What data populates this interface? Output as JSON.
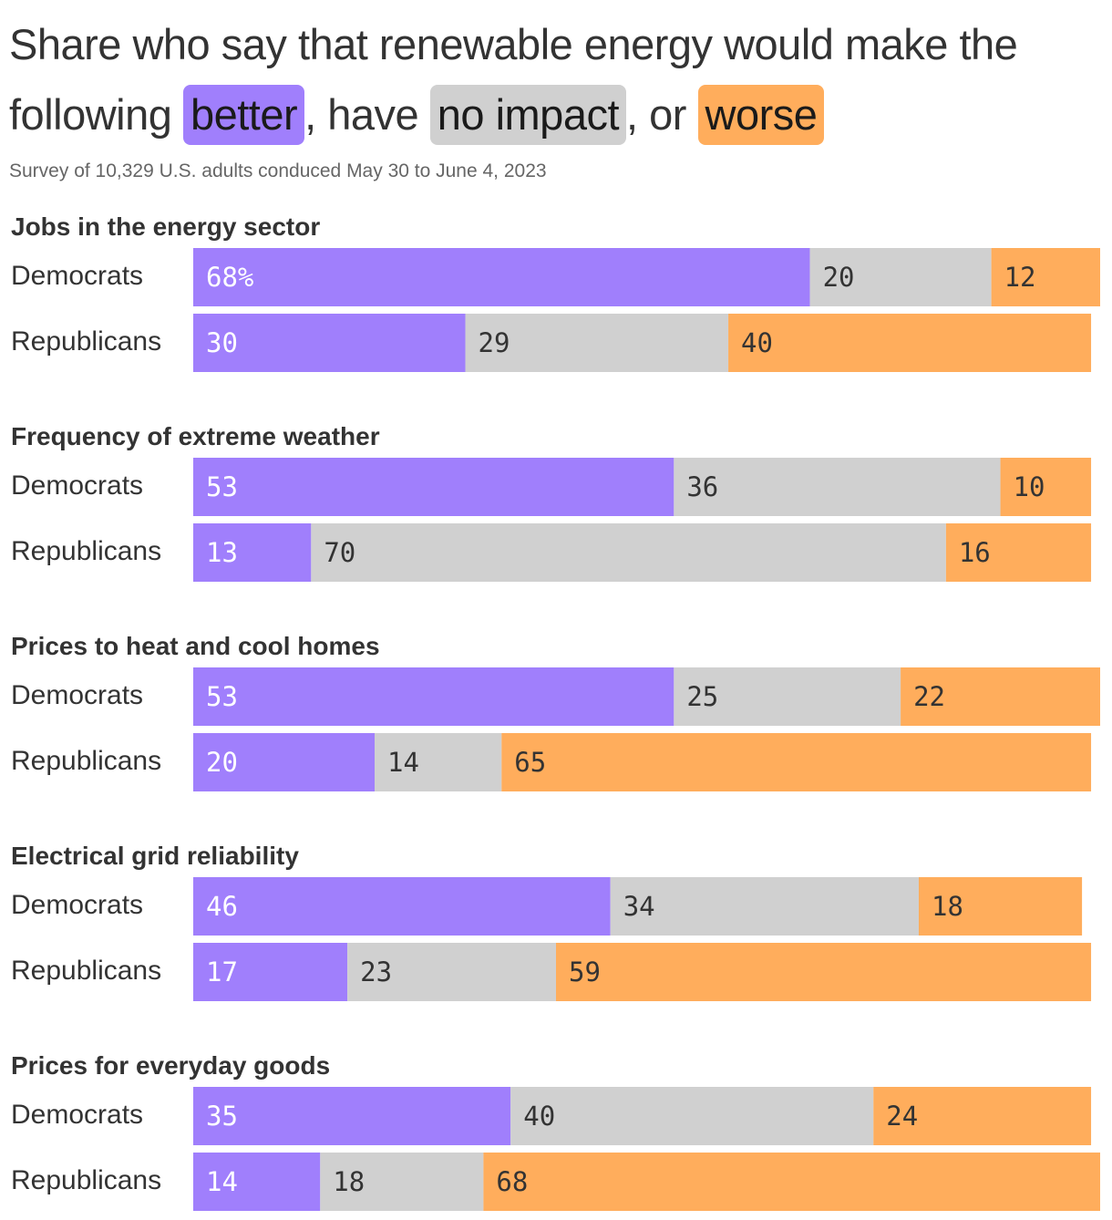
{
  "title": {
    "part1": "Share who say that renewable energy would make the following",
    "better": "better",
    "part2": ", have",
    "no_impact": "no impact",
    "part3": ", or",
    "worse": "worse"
  },
  "subtitle": "Survey of 10,329 U.S. adults conduced May 30 to June 4, 2023",
  "colors": {
    "better": "#a07ffc",
    "no_impact": "#d0d0d0",
    "worse": "#ffad5c"
  },
  "chart_data": {
    "type": "bar",
    "stacked": true,
    "orientation": "horizontal",
    "first_value_suffix": "%",
    "categories": [
      "better",
      "no impact",
      "worse"
    ],
    "groups": [
      {
        "name": "Jobs in the energy sector",
        "rows": [
          {
            "label": "Democrats",
            "values": [
              68,
              20,
              12
            ]
          },
          {
            "label": "Republicans",
            "values": [
              30,
              29,
              40
            ]
          }
        ]
      },
      {
        "name": "Frequency of extreme weather",
        "rows": [
          {
            "label": "Democrats",
            "values": [
              53,
              36,
              10
            ]
          },
          {
            "label": "Republicans",
            "values": [
              13,
              70,
              16
            ]
          }
        ]
      },
      {
        "name": "Prices to heat and cool homes",
        "rows": [
          {
            "label": "Democrats",
            "values": [
              53,
              25,
              22
            ]
          },
          {
            "label": "Republicans",
            "values": [
              20,
              14,
              65
            ]
          }
        ]
      },
      {
        "name": "Electrical grid reliability",
        "rows": [
          {
            "label": "Democrats",
            "values": [
              46,
              34,
              18
            ]
          },
          {
            "label": "Republicans",
            "values": [
              17,
              23,
              59
            ]
          }
        ]
      },
      {
        "name": "Prices for everyday goods",
        "rows": [
          {
            "label": "Democrats",
            "values": [
              35,
              40,
              24
            ]
          },
          {
            "label": "Republicans",
            "values": [
              14,
              18,
              68
            ]
          }
        ]
      }
    ]
  }
}
